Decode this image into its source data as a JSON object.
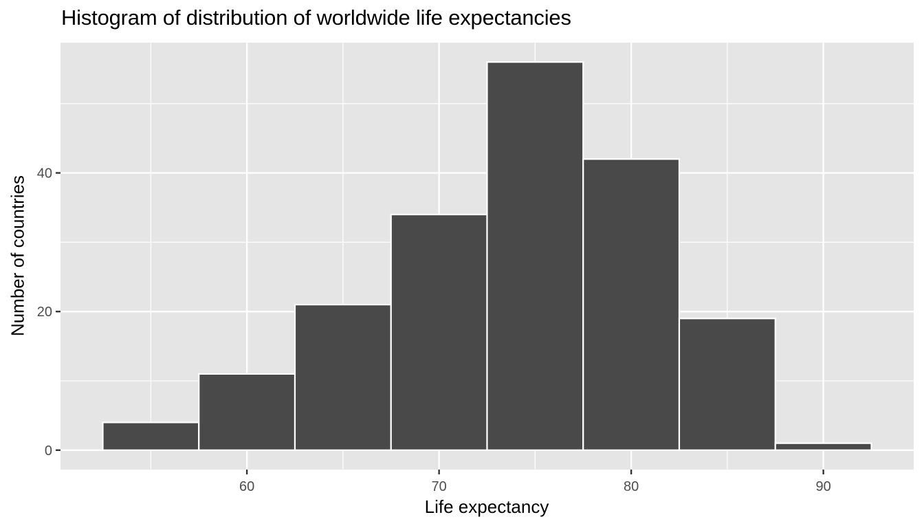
{
  "chart_data": {
    "type": "bar",
    "subtype": "histogram",
    "title": "Histogram of distribution of worldwide life expectancies",
    "xlabel": "Life expectancy",
    "ylabel": "Number of countries",
    "bin_width": 5,
    "bins": [
      {
        "from": 52.5,
        "to": 57.5,
        "center": 55,
        "count": 4
      },
      {
        "from": 57.5,
        "to": 62.5,
        "center": 60,
        "count": 11
      },
      {
        "from": 62.5,
        "to": 67.5,
        "center": 65,
        "count": 21
      },
      {
        "from": 67.5,
        "to": 72.5,
        "center": 70,
        "count": 34
      },
      {
        "from": 72.5,
        "to": 77.5,
        "center": 75,
        "count": 56
      },
      {
        "from": 77.5,
        "to": 82.5,
        "center": 80,
        "count": 42
      },
      {
        "from": 82.5,
        "to": 87.5,
        "center": 85,
        "count": 19
      },
      {
        "from": 87.5,
        "to": 92.5,
        "center": 90,
        "count": 1
      }
    ],
    "categories": [
      "52.5-57.5",
      "57.5-62.5",
      "62.5-67.5",
      "67.5-72.5",
      "72.5-77.5",
      "77.5-82.5",
      "82.5-87.5",
      "87.5-92.5"
    ],
    "values": [
      4,
      11,
      21,
      34,
      56,
      42,
      19,
      1
    ],
    "x_ticks": [
      60,
      70,
      80,
      90
    ],
    "x_tick_labels": [
      "60",
      "70",
      "80",
      "90"
    ],
    "y_ticks": [
      0,
      20,
      40
    ],
    "y_tick_labels": [
      "0",
      "20",
      "40"
    ],
    "xlim": [
      50.3,
      94.7
    ],
    "ylim": [
      -2.8,
      58.8
    ],
    "grid": true,
    "legend": null,
    "colors": {
      "bar_fill": "#494949",
      "bar_outline": "#ffffff",
      "panel_background": "#e5e5e5",
      "grid": "#ffffff"
    }
  }
}
